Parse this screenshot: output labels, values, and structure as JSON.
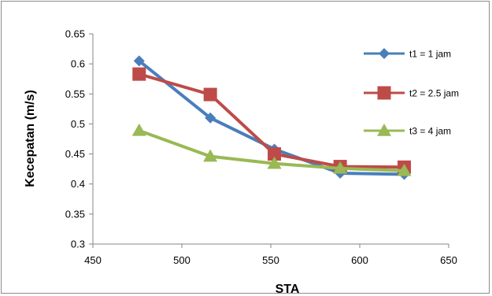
{
  "chart_data": {
    "type": "line",
    "title": "",
    "xlabel": "STA",
    "ylabel": "Kecepatan (m/s)",
    "xlim": [
      450,
      650
    ],
    "ylim": [
      0.3,
      0.65
    ],
    "xticks": [
      450,
      500,
      550,
      600,
      650
    ],
    "yticks": [
      0.3,
      0.35,
      0.4,
      0.45,
      0.5,
      0.55,
      0.6,
      0.65
    ],
    "xtick_labels": [
      "450",
      "500",
      "550",
      "600",
      "650"
    ],
    "ytick_labels": [
      "0.3",
      "0.35",
      "0.4",
      "0.45",
      "0.5",
      "0.55",
      "0.6",
      "0.65"
    ],
    "grid": false,
    "legend_position": "right",
    "x": [
      476,
      516,
      552,
      589,
      625
    ],
    "series": [
      {
        "name": "t1 = 1 jam",
        "values": [
          0.605,
          0.51,
          0.458,
          0.418,
          0.416
        ],
        "color": "#4a7ebb",
        "marker": "diamond"
      },
      {
        "name": "t2 = 2.5 jam",
        "values": [
          0.583,
          0.549,
          0.45,
          0.429,
          0.428
        ],
        "color": "#be4b48",
        "marker": "square"
      },
      {
        "name": "t3 = 4 jam",
        "values": [
          0.489,
          0.446,
          0.434,
          0.426,
          0.422
        ],
        "color": "#98b954",
        "marker": "triangle"
      }
    ]
  }
}
